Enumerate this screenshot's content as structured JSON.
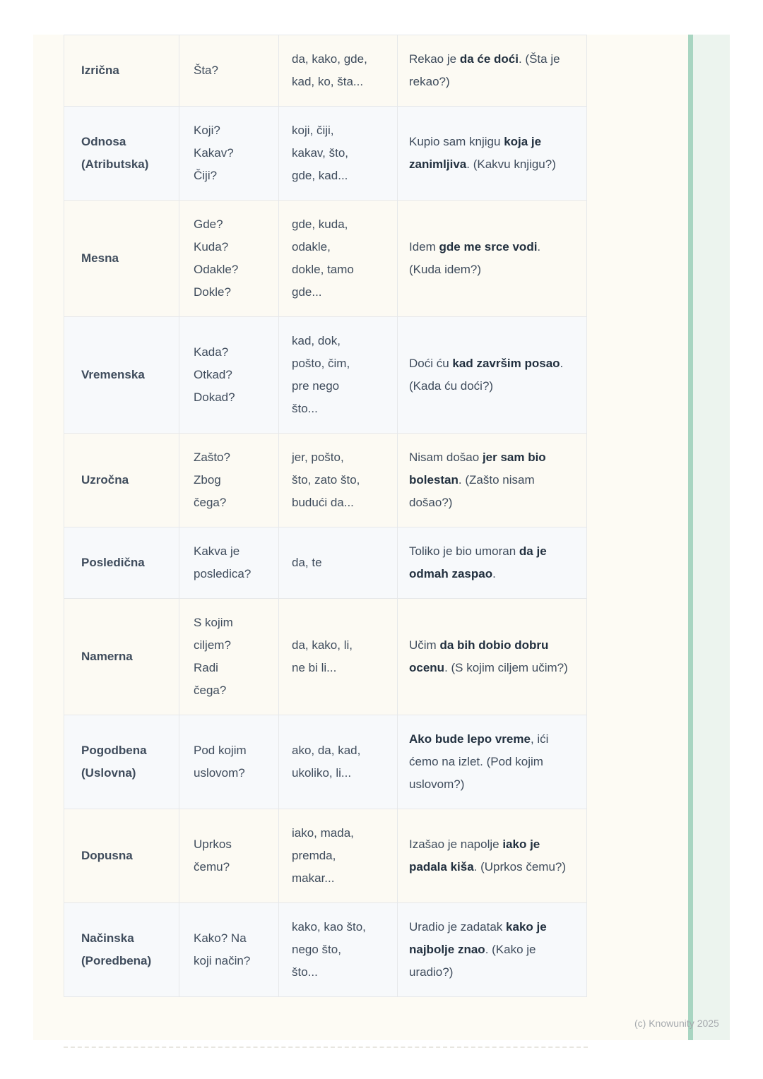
{
  "colors": {
    "paper": "#fdfbf4",
    "stripe-line": "#a8d5c1",
    "stripe-panel": "#ecf4ee",
    "table-border": "#e6e8ea",
    "row-warm": "#fcfaf3",
    "row-cool": "#f7f9fb",
    "text-regular": "#3f4c5c",
    "text-strong": "#22303f",
    "copyright": "#a6aaae",
    "divider": "#e8e6e0"
  },
  "footer": {
    "copyright": "(c) Knowunity 2025"
  },
  "table": {
    "rows": [
      {
        "type": "Izrična",
        "question": "Šta?",
        "conjunctions": "da, kako, gde,\nkad, ko, šta...",
        "example": [
          {
            "text": "Rekao je ",
            "bold": false
          },
          {
            "text": "da će doći",
            "bold": true
          },
          {
            "text": ". (Šta je rekao?)",
            "bold": false
          }
        ]
      },
      {
        "type": "Odnosa\n(Atributska)",
        "question": "Koji?\nKakav?\nČiji?",
        "conjunctions": "koji, čiji,\nkakav, što,\ngde, kad...",
        "example": [
          {
            "text": "Kupio sam knjigu ",
            "bold": false
          },
          {
            "text": "koja je zanimljiva",
            "bold": true
          },
          {
            "text": ". (Kakvu knjigu?)",
            "bold": false
          }
        ]
      },
      {
        "type": "Mesna",
        "question": "Gde?\nKuda?\nOdakle?\nDokle?",
        "conjunctions": "gde, kuda,\nodakle,\ndokle, tamo\ngde...",
        "example": [
          {
            "text": "Idem ",
            "bold": false
          },
          {
            "text": "gde me srce vodi",
            "bold": true
          },
          {
            "text": ". (Kuda idem?)",
            "bold": false
          }
        ]
      },
      {
        "type": "Vremenska",
        "question": "Kada?\nOtkad?\nDokad?",
        "conjunctions": "kad, dok,\npošto, čim,\npre nego\nšto...",
        "example": [
          {
            "text": "Doći ću ",
            "bold": false
          },
          {
            "text": "kad završim posao",
            "bold": true
          },
          {
            "text": ". (Kada ću doći?)",
            "bold": false
          }
        ]
      },
      {
        "type": "Uzročna",
        "question": "Zašto?\nZbog\nčega?",
        "conjunctions": "jer, pošto,\nšto, zato što,\nbudući da...",
        "example": [
          {
            "text": "Nisam došao ",
            "bold": false
          },
          {
            "text": "jer sam bio bolestan",
            "bold": true
          },
          {
            "text": ". (Zašto nisam došao?)",
            "bold": false
          }
        ]
      },
      {
        "type": "Posledična",
        "question": "Kakva je\nposledica?",
        "conjunctions": "da, te",
        "example": [
          {
            "text": "Toliko je bio umoran ",
            "bold": false
          },
          {
            "text": "da je odmah zaspao",
            "bold": true
          },
          {
            "text": ".",
            "bold": false
          }
        ]
      },
      {
        "type": "Namerna",
        "question": "S kojim\nciljem?\nRadi\nčega?",
        "conjunctions": "da, kako, li,\nne bi li...",
        "example": [
          {
            "text": "Učim ",
            "bold": false
          },
          {
            "text": "da bih dobio dobru ocenu",
            "bold": true
          },
          {
            "text": ". (S kojim ciljem učim?)",
            "bold": false
          }
        ]
      },
      {
        "type": "Pogodbena\n(Uslovna)",
        "question": "Pod kojim\nuslovom?",
        "conjunctions": "ako, da, kad,\nukoliko, li...",
        "example": [
          {
            "text": "Ako bude lepo vreme",
            "bold": true
          },
          {
            "text": ", ići ćemo na izlet. (Pod kojim uslovom?)",
            "bold": false
          }
        ]
      },
      {
        "type": "Dopusna",
        "question": "Uprkos\nčemu?",
        "conjunctions": "iako, mada,\npremda,\nmakar...",
        "example": [
          {
            "text": "Izašao je napolje ",
            "bold": false
          },
          {
            "text": "iako je padala kiša",
            "bold": true
          },
          {
            "text": ". (Uprkos čemu?)",
            "bold": false
          }
        ]
      },
      {
        "type": "Načinska\n(Poredbena)",
        "question": "Kako? Na\nkoji način?",
        "conjunctions": "kako, kao što,\nnego što,\nšto...",
        "example": [
          {
            "text": "Uradio je zadatak ",
            "bold": false
          },
          {
            "text": "kako je najbolje znao",
            "bold": true
          },
          {
            "text": ". (Kako je uradio?)",
            "bold": false
          }
        ]
      }
    ]
  }
}
